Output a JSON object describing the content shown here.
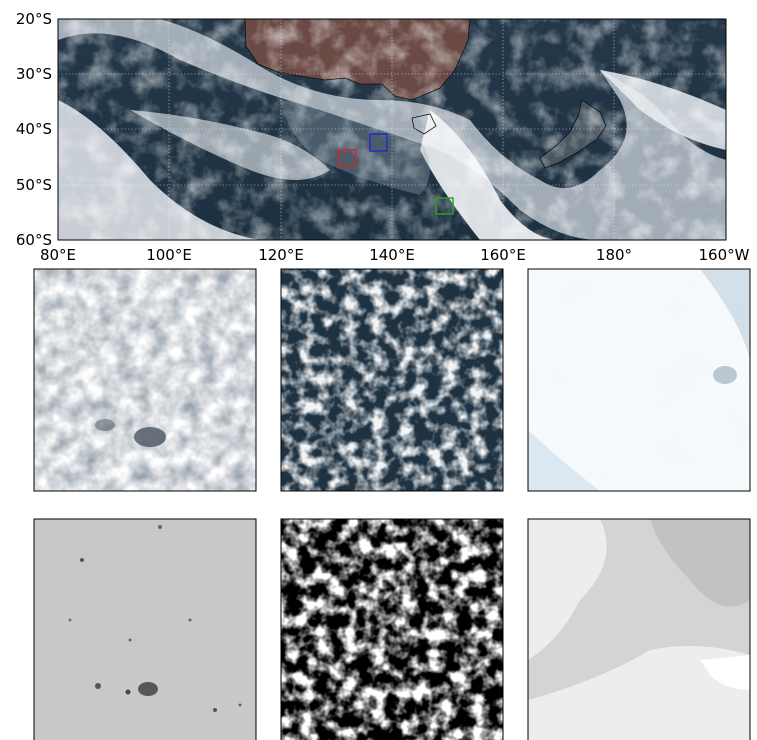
{
  "map": {
    "lat_ticks": [
      "20°S",
      "30°S",
      "40°S",
      "50°S",
      "60°S"
    ],
    "lon_ticks": [
      "80°E",
      "100°E",
      "120°E",
      "140°E",
      "160°E",
      "180°",
      "160°W"
    ],
    "regions": [
      {
        "name": "red-region",
        "color": "#d62728"
      },
      {
        "name": "blue-region",
        "color": "#1f2fbf"
      },
      {
        "name": "green-region",
        "color": "#2ca02c"
      }
    ]
  },
  "panels": {
    "row1": [
      {
        "name": "rgb-panel-red-region"
      },
      {
        "name": "rgb-panel-blue-region"
      },
      {
        "name": "rgb-panel-green-region"
      }
    ],
    "row2": [
      {
        "name": "gray-panel-red-region"
      },
      {
        "name": "gray-panel-blue-region"
      },
      {
        "name": "gray-panel-green-region"
      }
    ]
  }
}
